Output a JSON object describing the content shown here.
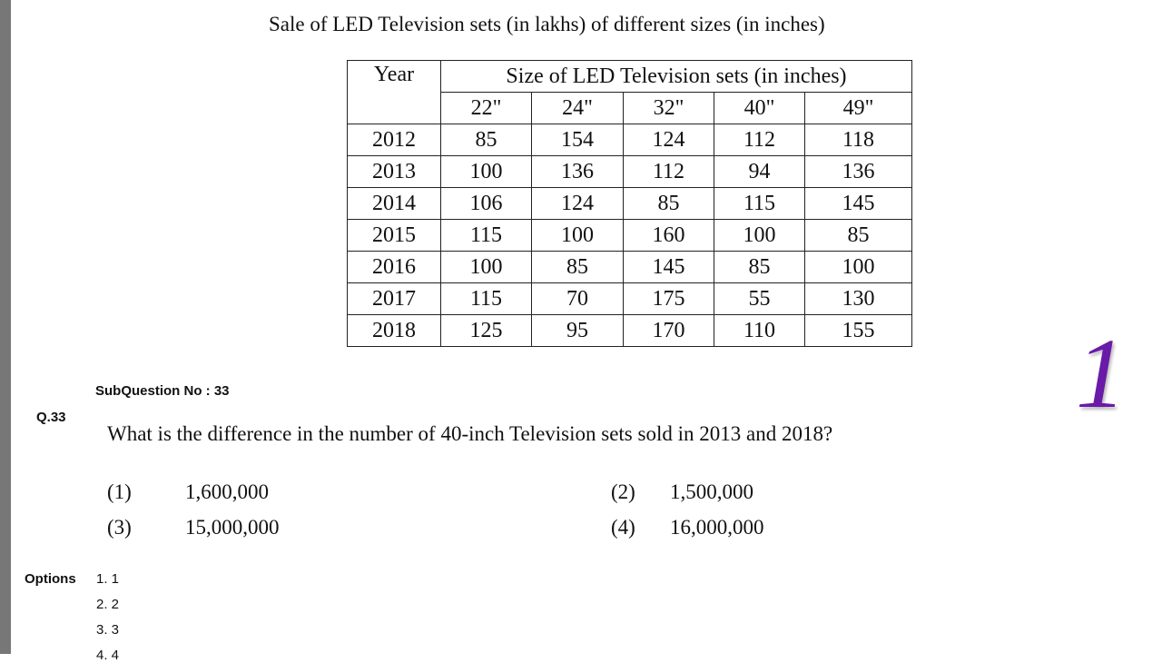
{
  "title": "Sale of LED Television sets (in lakhs) of different sizes (in inches)",
  "table": {
    "year_header": "Year",
    "size_header": "Size of LED Television sets (in inches)",
    "sizes": [
      "22\"",
      "24\"",
      "32\"",
      "40\"",
      "49\""
    ],
    "rows": [
      [
        "2012",
        85,
        154,
        124,
        112,
        118
      ],
      [
        "2013",
        100,
        136,
        112,
        94,
        136
      ],
      [
        "2014",
        106,
        124,
        85,
        115,
        145
      ],
      [
        "2015",
        115,
        100,
        160,
        100,
        85
      ],
      [
        "2016",
        100,
        85,
        145,
        85,
        100
      ],
      [
        "2017",
        115,
        70,
        175,
        55,
        130
      ],
      [
        "2018",
        125,
        95,
        170,
        110,
        155
      ]
    ]
  },
  "subquestion": "SubQuestion No : 33",
  "question_number": "Q.33",
  "question": "What is the difference in the number of 40-inch Television sets sold in 2013 and 2018?",
  "choices": [
    {
      "number": "(1)",
      "text": "1,600,000"
    },
    {
      "number": "(2)",
      "text": "1,500,000"
    },
    {
      "number": "(3)",
      "text": "15,000,000"
    },
    {
      "number": "(4)",
      "text": "16,000,000"
    }
  ],
  "options_label": "Options",
  "options": [
    "1. 1",
    "2. 2",
    "3. 3",
    "4. 4"
  ],
  "badge": "1"
}
